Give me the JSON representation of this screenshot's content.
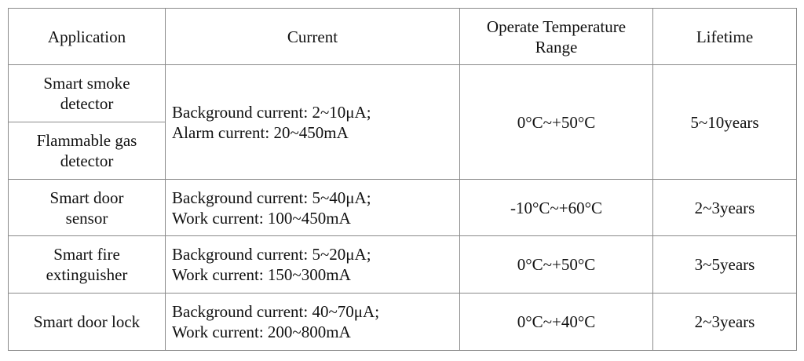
{
  "headers": {
    "application": "Application",
    "current": "Current",
    "temperature_line1": "Operate Temperature",
    "temperature_line2": "Range",
    "lifetime": "Lifetime"
  },
  "rows": [
    {
      "application_line1": "Smart smoke",
      "application_line2": "detector",
      "current_line1": "Background current: 2~10μA;",
      "current_line2": "Alarm current: 20~450mA",
      "temperature": "0°C~+50°C",
      "lifetime": "5~10years"
    },
    {
      "application_line1": "Flammable gas",
      "application_line2": "detector"
    },
    {
      "application_line1": "Smart door",
      "application_line2": "sensor",
      "current_line1": "Background current: 5~40μA;",
      "current_line2": "Work current: 100~450mA",
      "temperature": "-10°C~+60°C",
      "lifetime": "2~3years"
    },
    {
      "application_line1": "Smart fire",
      "application_line2": "extinguisher",
      "current_line1": "Background current: 5~20μA;",
      "current_line2": "Work current: 150~300mA",
      "temperature": "0°C~+50°C",
      "lifetime": "3~5years"
    },
    {
      "application_line1": "Smart door lock",
      "current_line1": "Background current: 40~70μA;",
      "current_line2": "Work current: 200~800mA",
      "temperature": "0°C~+40°C",
      "lifetime": "2~3years"
    }
  ]
}
